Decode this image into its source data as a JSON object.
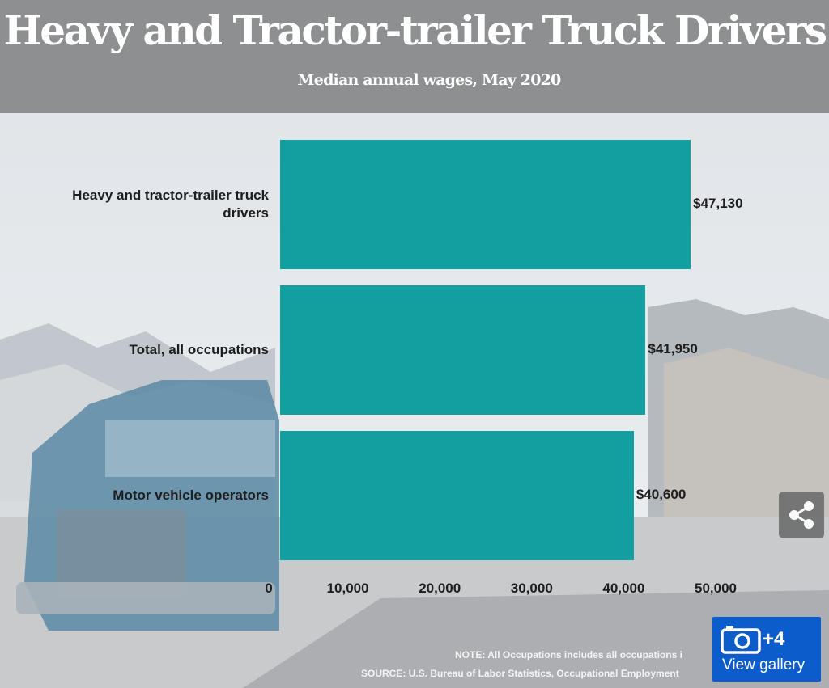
{
  "header": {
    "title": "Heavy and Tractor-trailer Truck Drivers",
    "subtitle": "Median annual wages, May 2020"
  },
  "chart_data": {
    "type": "bar",
    "orientation": "horizontal",
    "title": "Heavy and Tractor-trailer Truck Drivers",
    "subtitle": "Median annual wages, May 2020",
    "categories": [
      "Heavy and tractor-trailer truck drivers",
      "Total, all occupations",
      "Motor vehicle operators"
    ],
    "values": [
      47130,
      41950,
      40600
    ],
    "value_labels": [
      "$47,130",
      "$41,950",
      "$40,600"
    ],
    "ticks": [
      "0",
      "10,000",
      "20,000",
      "30,000",
      "40,000",
      "50,000"
    ],
    "xlim": [
      0,
      50000
    ],
    "bar_color": "#139ea0",
    "grid": false,
    "legend": "none"
  },
  "footer": {
    "note": "NOTE: All Occupations includes all occupations i",
    "source": "SOURCE: U.S. Bureau of Labor Statistics, Occupational Employment"
  },
  "gallery": {
    "count": "+4",
    "label": "View gallery",
    "icon": "camera-icon"
  },
  "share": {
    "icon": "share-icon"
  }
}
